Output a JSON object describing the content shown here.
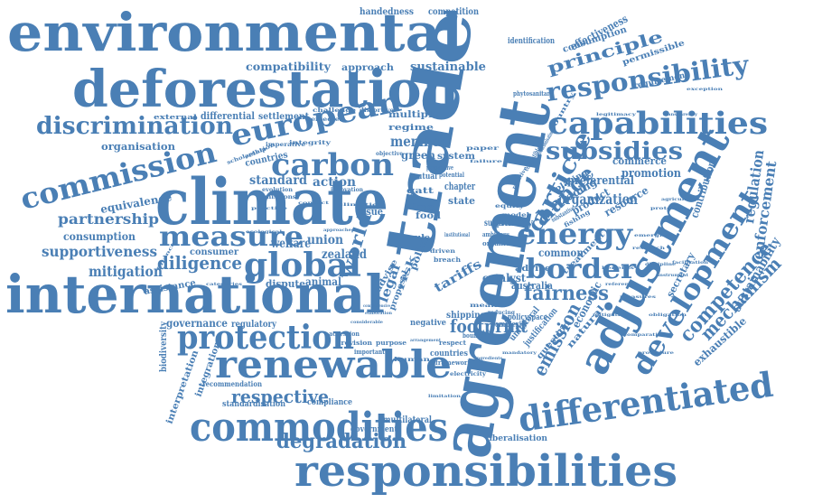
{
  "cloud": {
    "color": "#4a7fb5",
    "words": [
      {
        "text": "environmental",
        "weight": 58
      },
      {
        "text": "deforestation",
        "weight": 56
      },
      {
        "text": "international",
        "weight": 56
      },
      {
        "text": "climate",
        "weight": 66
      },
      {
        "text": "trade",
        "weight": 72
      },
      {
        "text": "agreement",
        "weight": 74
      },
      {
        "text": "adjustment",
        "weight": 50
      },
      {
        "text": "responsibilities",
        "weight": 48
      },
      {
        "text": "commodities",
        "weight": 44
      },
      {
        "text": "differentiated",
        "weight": 40
      },
      {
        "text": "renewable",
        "weight": 42
      },
      {
        "text": "protection",
        "weight": 36
      },
      {
        "text": "capabilities",
        "weight": 34
      },
      {
        "text": "responsibility",
        "weight": 30
      },
      {
        "text": "european",
        "weight": 32
      },
      {
        "text": "carbon",
        "weight": 34
      },
      {
        "text": "global",
        "weight": 34
      },
      {
        "text": "energy",
        "weight": 32
      },
      {
        "text": "border",
        "weight": 30
      },
      {
        "text": "measure",
        "weight": 30
      },
      {
        "text": "commission",
        "weight": 32
      },
      {
        "text": "discrimination",
        "weight": 26
      },
      {
        "text": "subsidies",
        "weight": 26
      },
      {
        "text": "development",
        "weight": 30
      },
      {
        "text": "article",
        "weight": 26
      },
      {
        "text": "change",
        "weight": 26
      },
      {
        "text": "fairness",
        "weight": 24
      },
      {
        "text": "emission",
        "weight": 22
      },
      {
        "text": "footprint",
        "weight": 20
      },
      {
        "text": "degradation",
        "weight": 22
      },
      {
        "text": "respective",
        "weight": 20
      },
      {
        "text": "competence",
        "weight": 22
      },
      {
        "text": "mechanism",
        "weight": 20
      },
      {
        "text": "diligence",
        "weight": 20
      },
      {
        "text": "mitigation",
        "weight": 16
      },
      {
        "text": "partnership",
        "weight": 16
      },
      {
        "text": "supportiveness",
        "weight": 16
      },
      {
        "text": "consumption",
        "weight": 13
      },
      {
        "text": "equivalence",
        "weight": 13
      },
      {
        "text": "organization",
        "weight": 18
      },
      {
        "text": "principle",
        "weight": 16
      },
      {
        "text": "sustainability",
        "weight": 14
      },
      {
        "text": "enforcement",
        "weight": 16
      },
      {
        "text": "regulation",
        "weight": 16
      },
      {
        "text": "union",
        "weight": 14
      },
      {
        "text": "welfare",
        "weight": 14
      },
      {
        "text": "zealand",
        "weight": 14
      },
      {
        "text": "action",
        "weight": 14
      },
      {
        "text": "standard",
        "weight": 14
      },
      {
        "text": "member",
        "weight": 16
      },
      {
        "text": "green",
        "weight": 14
      },
      {
        "text": "effectiveness",
        "weight": 12
      },
      {
        "text": "sustainable",
        "weight": 13
      },
      {
        "text": "compatibility",
        "weight": 12
      },
      {
        "text": "governance",
        "weight": 12
      },
      {
        "text": "regulatory",
        "weight": 10
      },
      {
        "text": "preferential",
        "weight": 13
      },
      {
        "text": "promotion",
        "weight": 13
      },
      {
        "text": "contribution",
        "weight": 12
      },
      {
        "text": "exhaustible",
        "weight": 12
      },
      {
        "text": "secretary",
        "weight": 11
      },
      {
        "text": "animal",
        "weight": 12
      },
      {
        "text": "dispute",
        "weight": 11
      },
      {
        "text": "catalyst",
        "weight": 12
      },
      {
        "text": "australia",
        "weight": 11
      },
      {
        "text": "economic",
        "weight": 12
      },
      {
        "text": "common",
        "weight": 12
      },
      {
        "text": "organisation",
        "weight": 11
      },
      {
        "text": "competition",
        "weight": 10
      },
      {
        "text": "handedness",
        "weight": 10
      },
      {
        "text": "approach",
        "weight": 10
      },
      {
        "text": "differential",
        "weight": 11
      },
      {
        "text": "settlement",
        "weight": 10
      },
      {
        "text": "multilateral",
        "weight": 10
      },
      {
        "text": "liberalisation",
        "weight": 9
      },
      {
        "text": "standardisation",
        "weight": 9
      },
      {
        "text": "interpretation",
        "weight": 10
      },
      {
        "text": "integration",
        "weight": 10
      },
      {
        "text": "biodiversity",
        "weight": 10
      },
      {
        "text": "assistance",
        "weight": 10
      },
      {
        "text": "recommendation",
        "weight": 8
      },
      {
        "text": "compliance",
        "weight": 9
      },
      {
        "text": "government",
        "weight": 8
      },
      {
        "text": "identification",
        "weight": 8
      },
      {
        "text": "permissible",
        "weight": 8
      },
      {
        "text": "requirement",
        "weight": 8
      },
      {
        "text": "phytosanitary",
        "weight": 7
      },
      {
        "text": "external",
        "weight": 10
      },
      {
        "text": "multiple",
        "weight": 9
      },
      {
        "text": "regime",
        "weight": 12
      },
      {
        "text": "commerce",
        "weight": 11
      },
      {
        "text": "trading",
        "weight": 12
      },
      {
        "text": "product",
        "weight": 12
      },
      {
        "text": "resource",
        "weight": 12
      },
      {
        "text": "safety",
        "weight": 11
      },
      {
        "text": "state",
        "weight": 11
      },
      {
        "text": "chapter",
        "weight": 10
      },
      {
        "text": "system",
        "weight": 14
      },
      {
        "text": "tariffs",
        "weight": 20
      },
      {
        "text": "world",
        "weight": 14
      },
      {
        "text": "legal",
        "weight": 11
      },
      {
        "text": "issue",
        "weight": 10
      },
      {
        "text": "support",
        "weight": 10
      },
      {
        "text": "shipping",
        "weight": 9
      },
      {
        "text": "negative",
        "weight": 9
      },
      {
        "text": "policyspace",
        "weight": 9
      },
      {
        "text": "treatment",
        "weight": 10
      },
      {
        "text": "natural",
        "weight": 10
      },
      {
        "text": "mutual",
        "weight": 9
      },
      {
        "text": "gatt",
        "weight": 10
      },
      {
        "text": "food",
        "weight": 9
      },
      {
        "text": "free",
        "weight": 10
      },
      {
        "text": "rule",
        "weight": 9
      },
      {
        "text": "risk",
        "weight": 10
      },
      {
        "text": "policy",
        "weight": 10
      },
      {
        "text": "proposal",
        "weight": 9
      },
      {
        "text": "advise",
        "weight": 9
      },
      {
        "text": "consumer",
        "weight": 10
      },
      {
        "text": "countries",
        "weight": 10
      },
      {
        "text": "complexity",
        "weight": 8
      },
      {
        "text": "question",
        "weight": 8
      },
      {
        "text": "justification",
        "weight": 7
      },
      {
        "text": "unilateral",
        "weight": 7
      },
      {
        "text": "framework",
        "weight": 7
      },
      {
        "text": "accession",
        "weight": 7
      },
      {
        "text": "provision",
        "weight": 7
      },
      {
        "text": "important",
        "weight": 7
      },
      {
        "text": "purpose",
        "weight": 7
      },
      {
        "text": "boundaries",
        "weight": 6
      },
      {
        "text": "respect",
        "weight": 6
      },
      {
        "text": "electricity",
        "weight": 6
      },
      {
        "text": "reducing",
        "weight": 8
      },
      {
        "text": "human",
        "weight": 7
      },
      {
        "text": "playing",
        "weight": 7
      },
      {
        "text": "substantive",
        "weight": 7
      },
      {
        "text": "fishing",
        "weight": 6
      },
      {
        "text": "country",
        "weight": 7
      },
      {
        "text": "positive",
        "weight": 6
      },
      {
        "text": "compatible",
        "weight": 7
      },
      {
        "text": "decarbonisation",
        "weight": 6
      },
      {
        "text": "remedies",
        "weight": 7
      },
      {
        "text": "imperative",
        "weight": 6
      },
      {
        "text": "evolution",
        "weight": 6
      },
      {
        "text": "innovation",
        "weight": 6
      },
      {
        "text": "emissions",
        "weight": 6
      },
      {
        "text": "integrity",
        "weight": 6
      },
      {
        "text": "scholarship",
        "weight": 6
      },
      {
        "text": "relation",
        "weight": 6
      },
      {
        "text": "challenge",
        "weight": 6
      },
      {
        "text": "distortive",
        "weight": 6
      },
      {
        "text": "objective",
        "weight": 6
      },
      {
        "text": "perspective",
        "weight": 6
      },
      {
        "text": "potential",
        "weight": 6
      },
      {
        "text": "institutional",
        "weight": 6
      },
      {
        "text": "ambitious",
        "weight": 6
      },
      {
        "text": "organic",
        "weight": 6
      },
      {
        "text": "breach",
        "weight": 7
      },
      {
        "text": "driven",
        "weight": 7
      },
      {
        "text": "means",
        "weight": 6
      },
      {
        "text": "model",
        "weight": 7
      },
      {
        "text": "equity",
        "weight": 7
      },
      {
        "text": "paper",
        "weight": 7
      },
      {
        "text": "failure",
        "weight": 6
      },
      {
        "text": "limitation",
        "weight": 6
      },
      {
        "text": "conflict",
        "weight": 6
      },
      {
        "text": "finance",
        "weight": 6
      },
      {
        "text": "practice",
        "weight": 6
      },
      {
        "text": "climatic",
        "weight": 6
      },
      {
        "text": "ecological",
        "weight": 5
      },
      {
        "text": "approaches",
        "weight": 5
      },
      {
        "text": "categories",
        "weight": 5
      },
      {
        "text": "considerable",
        "weight": 5
      },
      {
        "text": "elaboration",
        "weight": 5
      },
      {
        "text": "comprehensive",
        "weight": 5
      },
      {
        "text": "arrangement",
        "weight": 5
      },
      {
        "text": "ingredients",
        "weight": 5
      },
      {
        "text": "mandatory",
        "weight": 5
      },
      {
        "text": "reference",
        "weight": 5
      },
      {
        "text": "benefits",
        "weight": 5
      },
      {
        "text": "measures",
        "weight": 5
      },
      {
        "text": "emerging",
        "weight": 5
      },
      {
        "text": "research",
        "weight": 5
      },
      {
        "text": "protocol",
        "weight": 5
      },
      {
        "text": "agriculture",
        "weight": 5
      },
      {
        "text": "exception",
        "weight": 5
      },
      {
        "text": "discipline",
        "weight": 5
      },
      {
        "text": "instrument",
        "weight": 5
      },
      {
        "text": "facilitation",
        "weight": 5
      },
      {
        "text": "transparency",
        "weight": 5
      },
      {
        "text": "legitimacy",
        "weight": 5
      },
      {
        "text": "mitigating",
        "weight": 5
      },
      {
        "text": "obligation",
        "weight": 5
      },
      {
        "text": "comparative",
        "weight": 5
      },
      {
        "text": "procedure",
        "weight": 5
      }
    ]
  }
}
